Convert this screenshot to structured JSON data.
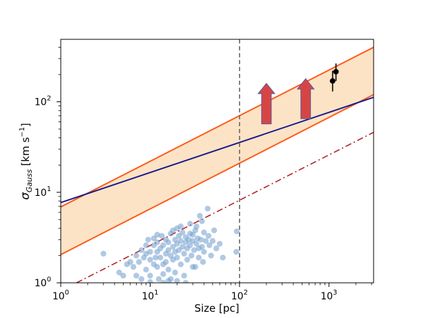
{
  "chart_data": {
    "type": "scatter",
    "x_scale": "log",
    "y_scale": "log",
    "xlim": [
      1,
      3162
    ],
    "ylim": [
      1,
      490
    ],
    "xlabel": "Size [pc]",
    "ylabel": {
      "sigma": "σ",
      "sub": "Gauss",
      "units_pre": " [km s",
      "units_exp": "−1",
      "units_post": "]"
    },
    "x_ticks": [
      {
        "value": 1,
        "base": "10",
        "exp": "0"
      },
      {
        "value": 10,
        "base": "10",
        "exp": "1"
      },
      {
        "value": 100,
        "base": "10",
        "exp": "2"
      },
      {
        "value": 1000,
        "base": "10",
        "exp": "3"
      }
    ],
    "y_ticks": [
      {
        "value": 1,
        "base": "10",
        "exp": "0"
      },
      {
        "value": 10,
        "base": "10",
        "exp": "1"
      },
      {
        "value": 100,
        "base": "10",
        "exp": "2"
      }
    ],
    "colors": {
      "band_fill": "#fde3c5",
      "band_edge": "#ff5a1a",
      "navy_line": "#1a1a8c",
      "dashdot_line": "#b22222",
      "vline": "#666666",
      "scatter": "#6f9ccc",
      "arrow_fill": "#d64545",
      "arrow_edge": "#5a5a9a",
      "errorbar": "#000000"
    },
    "series": [
      {
        "name": "band",
        "kind": "band",
        "lower": {
          "x": [
            1,
            3162
          ],
          "y": [
            2.05,
            120
          ]
        },
        "upper": {
          "x": [
            1,
            3162
          ],
          "y": [
            6.9,
            400
          ]
        }
      },
      {
        "name": "navy-line",
        "kind": "line",
        "x": [
          1,
          3162
        ],
        "y": [
          7.7,
          112
        ]
      },
      {
        "name": "dashdot-line",
        "kind": "line",
        "style": "dashdot",
        "x": [
          1.5,
          3162
        ],
        "y": [
          1,
          46
        ]
      },
      {
        "name": "vertical-dashed",
        "kind": "vline",
        "x": 100
      },
      {
        "name": "lower-limit-arrows",
        "kind": "arrows",
        "points": [
          {
            "x": 200,
            "y": 57,
            "y_top": 160
          },
          {
            "x": 550,
            "y": 65,
            "y_top": 180
          }
        ]
      },
      {
        "name": "errorbar-points",
        "kind": "errorbar",
        "points": [
          {
            "x": 1100,
            "y": 170,
            "ylo": 130,
            "yhi": 220
          },
          {
            "x": 1200,
            "y": 215,
            "ylo": 170,
            "yhi": 265
          }
        ]
      },
      {
        "name": "clouds",
        "kind": "scatter",
        "points": [
          [
            3,
            2.1
          ],
          [
            4.5,
            1.3
          ],
          [
            5,
            1.2
          ],
          [
            5.5,
            1.6
          ],
          [
            6,
            1.7
          ],
          [
            6.5,
            1.5
          ],
          [
            7,
            2.0
          ],
          [
            7,
            1.2
          ],
          [
            7.5,
            1.7
          ],
          [
            8,
            2.3
          ],
          [
            8,
            1.1
          ],
          [
            8.5,
            1.9
          ],
          [
            9,
            2.1
          ],
          [
            9,
            1.4
          ],
          [
            9.5,
            3.0
          ],
          [
            10,
            2.2
          ],
          [
            10,
            1.8
          ],
          [
            10,
            1.2
          ],
          [
            11,
            3.1
          ],
          [
            11,
            2.6
          ],
          [
            11,
            1.6
          ],
          [
            11.5,
            1.9
          ],
          [
            12,
            2.8
          ],
          [
            12,
            2.2
          ],
          [
            12,
            1.5
          ],
          [
            12.5,
            1.1
          ],
          [
            13,
            2.4
          ],
          [
            13,
            1.9
          ],
          [
            13.5,
            3.3
          ],
          [
            14,
            2.6
          ],
          [
            14,
            1.6
          ],
          [
            14,
            1.25
          ],
          [
            15,
            3.0
          ],
          [
            15,
            2.1
          ],
          [
            15,
            1.7
          ],
          [
            16,
            2.8
          ],
          [
            16,
            2.3
          ],
          [
            16,
            1.4
          ],
          [
            17,
            3.5
          ],
          [
            17,
            2.0
          ],
          [
            17,
            1.1
          ],
          [
            18,
            2.5
          ],
          [
            18,
            1.8
          ],
          [
            19,
            3.0
          ],
          [
            19,
            2.2
          ],
          [
            19,
            1.3
          ],
          [
            20,
            4.0
          ],
          [
            20,
            2.7
          ],
          [
            20,
            1.9
          ],
          [
            21,
            3.3
          ],
          [
            21,
            2.3
          ],
          [
            22,
            2.9
          ],
          [
            22,
            1.6
          ],
          [
            23,
            3.6
          ],
          [
            23,
            2.5
          ],
          [
            24,
            2.1
          ],
          [
            24,
            1.2
          ],
          [
            25,
            3.2
          ],
          [
            25,
            2.8
          ],
          [
            26,
            2.4
          ],
          [
            26,
            1.8
          ],
          [
            27,
            3.0
          ],
          [
            28,
            4.5
          ],
          [
            28,
            2.6
          ],
          [
            29,
            2.0
          ],
          [
            30,
            3.4
          ],
          [
            30,
            2.9
          ],
          [
            31,
            2.3
          ],
          [
            32,
            3.8
          ],
          [
            32,
            1.5
          ],
          [
            33,
            2.7
          ],
          [
            34,
            3.1
          ],
          [
            35,
            2.4
          ],
          [
            35,
            1.9
          ],
          [
            36,
            5.5
          ],
          [
            37,
            3.0
          ],
          [
            38,
            2.5
          ],
          [
            39,
            1.7
          ],
          [
            40,
            3.6
          ],
          [
            40,
            2.2
          ],
          [
            42,
            2.9
          ],
          [
            44,
            6.6
          ],
          [
            45,
            3.3
          ],
          [
            46,
            2.6
          ],
          [
            48,
            2.0
          ],
          [
            50,
            2.9
          ],
          [
            52,
            3.8
          ],
          [
            55,
            2.4
          ],
          [
            60,
            2.7
          ],
          [
            65,
            1.9
          ],
          [
            25,
            1.0
          ],
          [
            20,
            1.05
          ],
          [
            14,
            1.0
          ],
          [
            33,
            4.2
          ],
          [
            18,
            3.8
          ],
          [
            12,
            3.4
          ],
          [
            9,
            2.6
          ],
          [
            28,
            3.5
          ],
          [
            38,
            4.8
          ],
          [
            22,
            4.2
          ],
          [
            16,
            1.05
          ],
          [
            30,
            1.5
          ],
          [
            10,
            1.02
          ],
          [
            93,
            3.7
          ],
          [
            92,
            2.2
          ]
        ]
      }
    ]
  }
}
